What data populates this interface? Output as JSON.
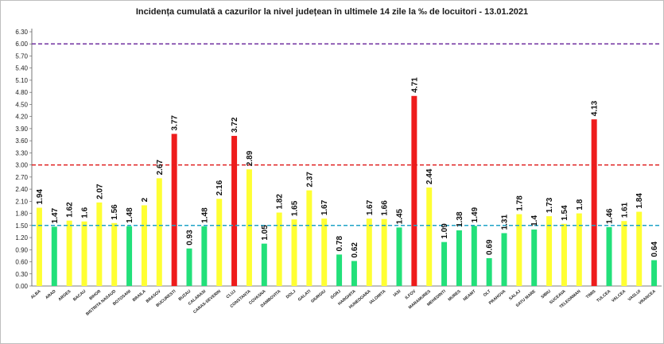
{
  "chart_data": {
    "type": "bar",
    "title": "Incidența cumulată a cazurilor la nivel județean în ultimele 14 zile la ‰ de locuitori - 13.01.2021",
    "xlabel": "",
    "ylabel": "",
    "ylim": [
      0,
      6.3
    ],
    "yticks": [
      "0.00",
      "0.30",
      "0.60",
      "0.90",
      "1.20",
      "1.50",
      "1.80",
      "2.10",
      "2.40",
      "2.70",
      "3.00",
      "3.30",
      "3.60",
      "3.90",
      "4.20",
      "4.50",
      "4.80",
      "5.10",
      "5.40",
      "5.70",
      "6.00",
      "6.30"
    ],
    "grid": false,
    "legend": "none",
    "thresholds": [
      {
        "value": 6.0,
        "color": "#7030a0",
        "style": "dashed"
      },
      {
        "value": 3.0,
        "color": "#e02020",
        "style": "dashed"
      },
      {
        "value": 1.5,
        "color": "#1fa3c7",
        "style": "dashed"
      }
    ],
    "colors": {
      "green": "#22e07a",
      "yellow": "#ffff33",
      "red": "#ee1c1c"
    },
    "categories": [
      "ALBA",
      "ARAD",
      "ARGES",
      "BACAU",
      "BIHOR",
      "BISTRITA NASAUD",
      "BOTOSANI",
      "BRAILA",
      "BRASOV",
      "BUCURESTI",
      "BUZAU",
      "CALARASI",
      "CARAS-SEVERIN",
      "CLUJ",
      "CONSTANTA",
      "COVASNA",
      "DAMBOVITA",
      "DOLJ",
      "GALATI",
      "GIURGIU",
      "GORJ",
      "HARGHITA",
      "HUNEDOARA",
      "IALOMITA",
      "IASI",
      "ILFOV",
      "MARAMURES",
      "MEHEDINTI",
      "MURES",
      "NEAMT",
      "OLT",
      "PRAHOVA",
      "SALAJ",
      "SATU MARE",
      "SIBIU",
      "SUCEAVA",
      "TELEORMAN",
      "TIMIS",
      "TULCEA",
      "VALCEA",
      "VASLUI",
      "VRANCEA"
    ],
    "values": [
      1.94,
      1.47,
      1.62,
      1.6,
      2.07,
      1.56,
      1.48,
      2,
      2.67,
      3.77,
      0.93,
      1.48,
      2.16,
      3.72,
      2.89,
      1.05,
      1.82,
      1.65,
      2.37,
      1.67,
      0.78,
      0.62,
      1.67,
      1.66,
      1.45,
      4.71,
      2.44,
      1.09,
      1.38,
      1.49,
      0.69,
      1.31,
      1.78,
      1.4,
      1.73,
      1.54,
      1.8,
      4.13,
      1.46,
      1.61,
      1.84,
      0.64
    ],
    "labels": [
      "1.94",
      "1.47",
      "1.62",
      "1.6",
      "2.07",
      "1.56",
      "1.48",
      "2",
      "2.67",
      "3.77",
      "0.93",
      "1.48",
      "2.16",
      "3.72",
      "2.89",
      "1.05",
      "1.82",
      "1.65",
      "2.37",
      "1.67",
      "0.78",
      "0.62",
      "1.67",
      "1.66",
      "1.45",
      "4.71",
      "2.44",
      "1.09",
      "1.38",
      "1.49",
      "0.69",
      "1.31",
      "1.78",
      "1.4",
      "1.73",
      "1.54",
      "1.8",
      "4.13",
      "1.46",
      "1.61",
      "1.84",
      "0.64"
    ]
  }
}
